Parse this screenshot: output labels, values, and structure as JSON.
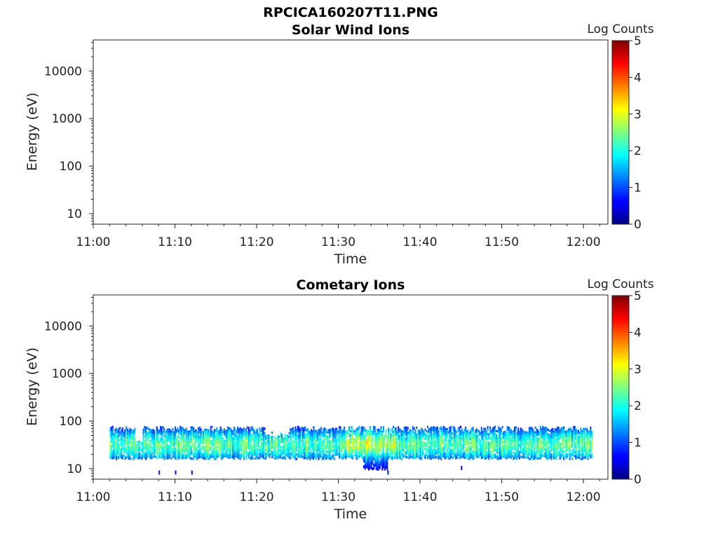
{
  "figure": {
    "title": "RPCICA160207T11.PNG"
  },
  "colormap": {
    "name": "jet",
    "stops": [
      "#00007f",
      "#0000ff",
      "#007fff",
      "#00ffff",
      "#7fff7f",
      "#ffff00",
      "#ff7f00",
      "#ff0000",
      "#7f0000"
    ]
  },
  "chart_data": [
    {
      "type": "heatmap",
      "title": "Solar Wind Ions",
      "xlabel": "Time",
      "ylabel": "Energy (eV)",
      "x_range": [
        "11:00",
        "12:03"
      ],
      "x_ticks": [
        "11:00",
        "11:10",
        "11:20",
        "11:30",
        "11:40",
        "11:50",
        "12:00"
      ],
      "y_scale": "log",
      "y_range_eV": [
        6,
        45000
      ],
      "y_ticks": [
        "10",
        "100",
        "1000",
        "10000"
      ],
      "colorbar": {
        "label": "Log Counts",
        "range": [
          0,
          5
        ],
        "ticks": [
          "0",
          "1",
          "2",
          "3",
          "4",
          "5"
        ]
      },
      "data_summary": "no counts recorded in this interval"
    },
    {
      "type": "heatmap",
      "title": "Cometary Ions",
      "xlabel": "Time",
      "ylabel": "Energy (eV)",
      "x_range": [
        "11:00",
        "12:03"
      ],
      "x_ticks": [
        "11:00",
        "11:10",
        "11:20",
        "11:30",
        "11:40",
        "11:50",
        "12:00"
      ],
      "y_scale": "log",
      "y_range_eV": [
        6,
        45000
      ],
      "y_ticks": [
        "10",
        "100",
        "1000",
        "10000"
      ],
      "colorbar": {
        "label": "Log Counts",
        "range": [
          0,
          5
        ],
        "ticks": [
          "0",
          "1",
          "2",
          "3",
          "4",
          "5"
        ]
      },
      "band": {
        "time_start": "11:02",
        "time_end": "12:01",
        "energy_low_eV": 15,
        "energy_high_eV": 80,
        "peak_energy_eV": 30,
        "typical_log_counts_min": 0.5,
        "typical_log_counts_max": 2.3,
        "gaps": [
          {
            "start": "11:05",
            "end": "11:06",
            "energy_high_eV": 45
          },
          {
            "start": "11:21",
            "end": "11:24",
            "energy_high_eV": 60
          }
        ],
        "low_energy_dip": {
          "start": "11:33",
          "end": "11:36",
          "energy_low_eV": 9
        },
        "isolated_points": [
          {
            "time": "11:08",
            "energy_eV": 8
          },
          {
            "time": "11:10",
            "energy_eV": 8
          },
          {
            "time": "11:12",
            "energy_eV": 8
          },
          {
            "time": "11:36",
            "energy_eV": 8
          },
          {
            "time": "11:45",
            "energy_eV": 10
          }
        ]
      }
    }
  ]
}
